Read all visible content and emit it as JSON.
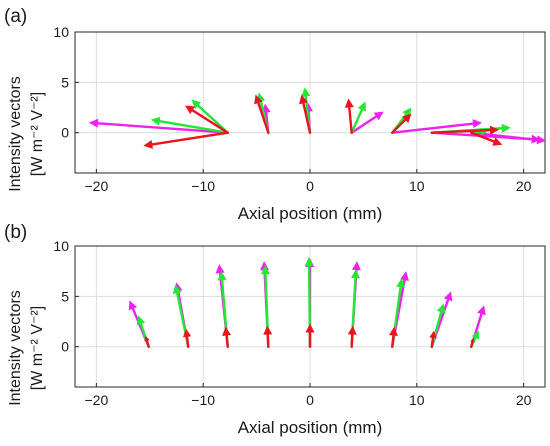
{
  "colors": {
    "red": "#e8141e",
    "green": "#22e834",
    "magenta": "#ee22ee",
    "axis": "#262626",
    "grid": "#dcdcdc"
  },
  "chart_data": [
    {
      "type": "quiver",
      "panel_label": "(a)",
      "xlabel": "Axial position (mm)",
      "ylabel_line1": "Intensity vectors",
      "ylabel_line2": "[W m⁻² V⁻²]",
      "xlim": [
        -22,
        22
      ],
      "ylim": [
        -4,
        10
      ],
      "xticks": [
        -20,
        -10,
        0,
        10,
        20
      ],
      "yticks": [
        0,
        5,
        10
      ],
      "grid": true,
      "series": [
        {
          "color": "magenta",
          "vectors": [
            {
              "x": -7.7,
              "y": 0,
              "u": -13.0,
              "v": 1.0
            },
            {
              "x": -3.9,
              "y": 0,
              "u": -0.3,
              "v": 2.9
            },
            {
              "x": 0,
              "y": 0,
              "u": -0.2,
              "v": 3.0
            },
            {
              "x": 3.9,
              "y": 0,
              "u": 3.0,
              "v": 2.1
            },
            {
              "x": 7.7,
              "y": 0,
              "u": 8.4,
              "v": 1.0
            },
            {
              "x": 11.4,
              "y": 0,
              "u": 10.2,
              "v": -0.7
            },
            {
              "x": 15.1,
              "y": 0,
              "u": 7.0,
              "v": -0.8
            }
          ]
        },
        {
          "color": "green",
          "vectors": [
            {
              "x": -7.7,
              "y": 0,
              "u": -3.4,
              "v": 3.3
            },
            {
              "x": -7.7,
              "y": 0,
              "u": -7.2,
              "v": 1.3
            },
            {
              "x": -3.9,
              "y": 0,
              "u": -0.9,
              "v": 4.0
            },
            {
              "x": 0,
              "y": 0,
              "u": -0.5,
              "v": 4.5
            },
            {
              "x": 3.9,
              "y": 0,
              "u": 1.3,
              "v": 3.1
            },
            {
              "x": 7.7,
              "y": 0,
              "u": 1.8,
              "v": 2.5
            },
            {
              "x": 11.4,
              "y": 0,
              "u": 7.4,
              "v": 0.5
            },
            {
              "x": 15.1,
              "y": 0,
              "u": 1.6,
              "v": 0.2
            }
          ]
        },
        {
          "color": "red",
          "vectors": [
            {
              "x": -7.7,
              "y": 0,
              "u": -4.0,
              "v": 2.7
            },
            {
              "x": -7.7,
              "y": 0,
              "u": -7.9,
              "v": -1.3
            },
            {
              "x": -3.9,
              "y": 0,
              "u": -1.2,
              "v": 3.8
            },
            {
              "x": 0,
              "y": 0,
              "u": -0.8,
              "v": 3.8
            },
            {
              "x": 3.9,
              "y": 0,
              "u": -0.3,
              "v": 3.4
            },
            {
              "x": 7.7,
              "y": 0,
              "u": 1.8,
              "v": 1.9
            },
            {
              "x": 11.4,
              "y": 0,
              "u": 6.3,
              "v": 0.3
            },
            {
              "x": 15.1,
              "y": 0,
              "u": 2.9,
              "v": -1.2
            }
          ]
        }
      ]
    },
    {
      "type": "quiver",
      "panel_label": "(b)",
      "xlabel": "Axial position (mm)",
      "ylabel_line1": "Intensity vectors",
      "ylabel_line2": "[W m⁻² V⁻²]",
      "xlim": [
        -22,
        22
      ],
      "ylim": [
        -4,
        10
      ],
      "xticks": [
        -20,
        -10,
        0,
        10,
        20
      ],
      "yticks": [
        0,
        5,
        10
      ],
      "grid": true,
      "series": [
        {
          "color": "magenta",
          "vectors": [
            {
              "x": -15.1,
              "y": 0,
              "u": -1.8,
              "v": 4.6
            },
            {
              "x": -11.4,
              "y": 0,
              "u": -1.1,
              "v": 6.4
            },
            {
              "x": -7.7,
              "y": 0,
              "u": -0.8,
              "v": 8.2
            },
            {
              "x": -3.9,
              "y": 0,
              "u": -0.4,
              "v": 8.5
            },
            {
              "x": 0,
              "y": 0,
              "u": 0.0,
              "v": 8.8
            },
            {
              "x": 3.9,
              "y": 0,
              "u": 0.5,
              "v": 8.5
            },
            {
              "x": 7.7,
              "y": 0,
              "u": 1.3,
              "v": 7.5
            },
            {
              "x": 11.4,
              "y": 0,
              "u": 1.8,
              "v": 5.5
            },
            {
              "x": 15.1,
              "y": 0,
              "u": 1.2,
              "v": 4.1
            }
          ]
        },
        {
          "color": "green",
          "vectors": [
            {
              "x": -15.1,
              "y": 0,
              "u": -1.0,
              "v": 3.1
            },
            {
              "x": -11.4,
              "y": 0,
              "u": -1.2,
              "v": 6.2
            },
            {
              "x": -7.7,
              "y": 0,
              "u": -0.6,
              "v": 7.5
            },
            {
              "x": -3.9,
              "y": 0,
              "u": -0.3,
              "v": 8.1
            },
            {
              "x": 0,
              "y": 0,
              "u": -0.1,
              "v": 8.9
            },
            {
              "x": 3.9,
              "y": 0,
              "u": 0.4,
              "v": 7.7
            },
            {
              "x": 7.7,
              "y": 0,
              "u": 0.9,
              "v": 6.8
            },
            {
              "x": 11.4,
              "y": 0,
              "u": 1.1,
              "v": 4.3
            },
            {
              "x": 15.1,
              "y": 0,
              "u": 0.7,
              "v": 1.6
            }
          ]
        },
        {
          "color": "red",
          "vectors": [
            {
              "x": -15.1,
              "y": 0,
              "u": -0.3,
              "v": 1.1
            },
            {
              "x": -11.4,
              "y": 0,
              "u": -0.2,
              "v": 1.8
            },
            {
              "x": -7.7,
              "y": 0,
              "u": -0.2,
              "v": 2.0
            },
            {
              "x": -3.9,
              "y": 0,
              "u": -0.1,
              "v": 2.1
            },
            {
              "x": 0,
              "y": 0,
              "u": 0.0,
              "v": 2.3
            },
            {
              "x": 3.9,
              "y": 0,
              "u": 0.1,
              "v": 2.1
            },
            {
              "x": 7.7,
              "y": 0,
              "u": 0.2,
              "v": 2.0
            },
            {
              "x": 11.4,
              "y": 0,
              "u": 0.2,
              "v": 1.6
            },
            {
              "x": 15.1,
              "y": 0,
              "u": 0.2,
              "v": 0.9
            }
          ]
        }
      ]
    }
  ]
}
